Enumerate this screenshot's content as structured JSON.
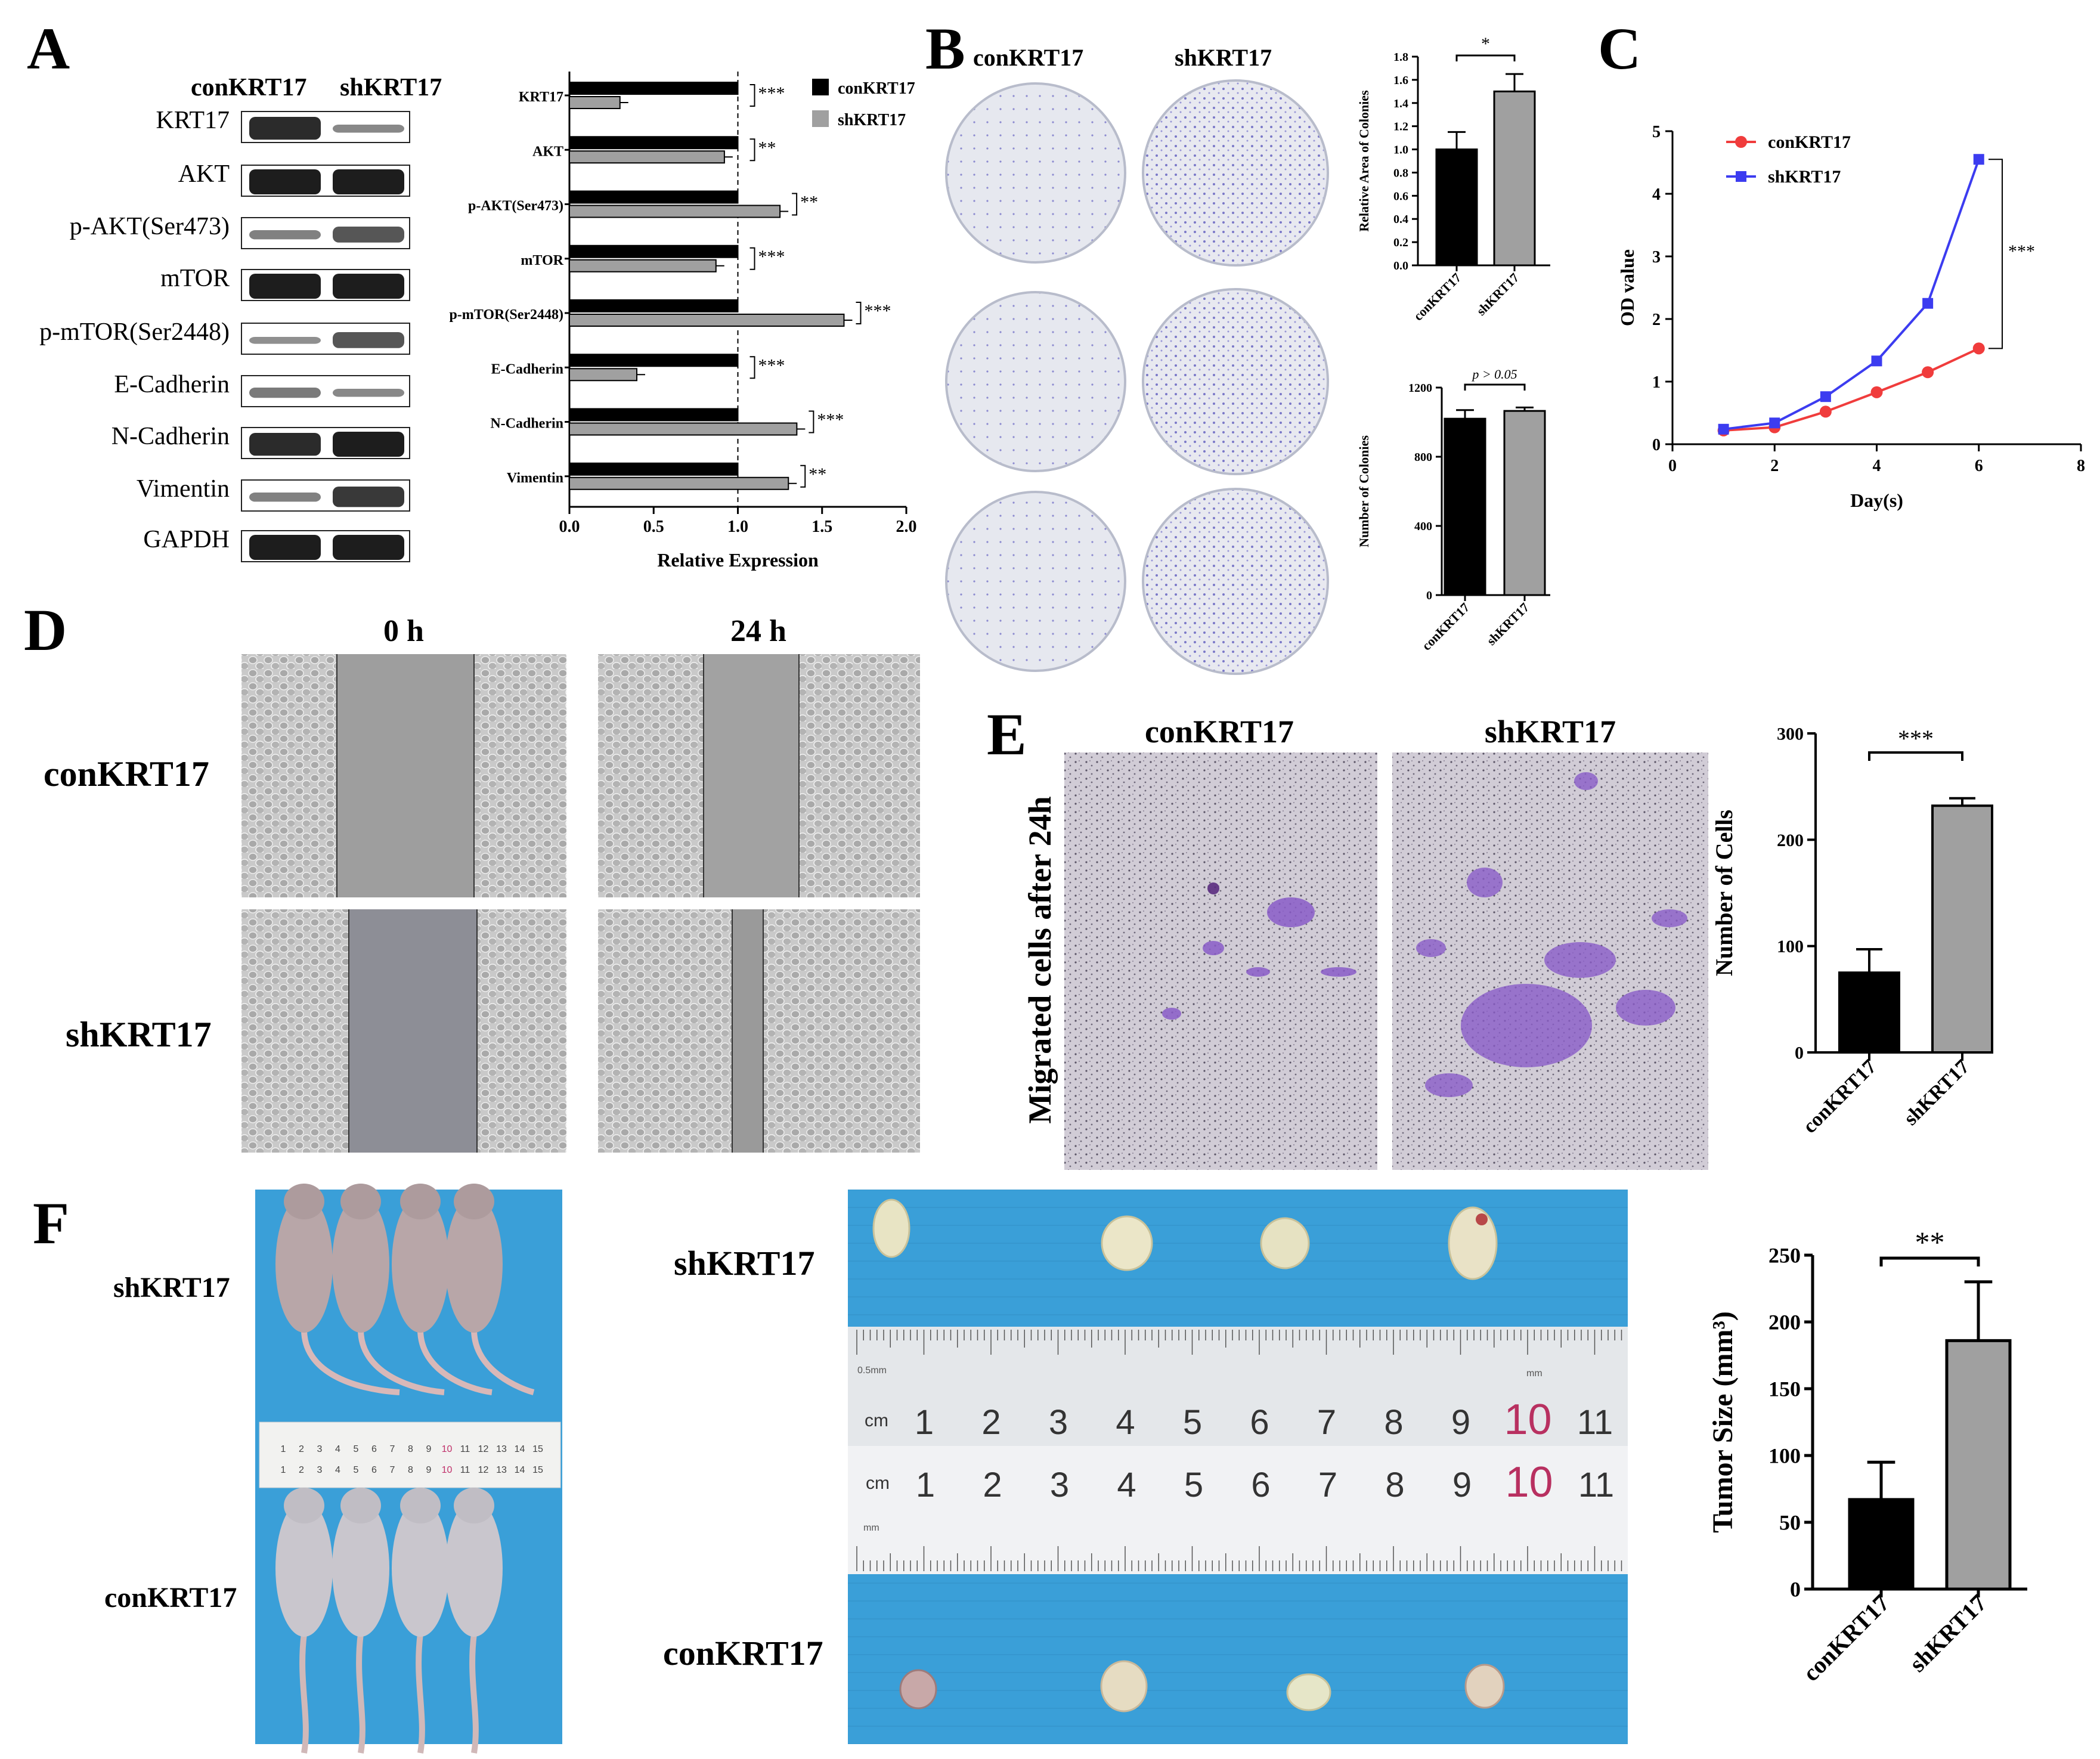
{
  "panels": {
    "A": {
      "letter": "A",
      "col_con": "conKRT17",
      "col_sh": "shKRT17",
      "blot_labels": [
        "KRT17",
        "AKT",
        "p-AKT(Ser473)",
        "mTOR",
        "p-mTOR(Ser2448)",
        "E-Cadherin",
        "N-Cadherin",
        "Vimentin",
        "GAPDH"
      ]
    },
    "B": {
      "letter": "B",
      "col_con": "conKRT17",
      "col_sh": "shKRT17"
    },
    "C": {
      "letter": "C"
    },
    "D": {
      "letter": "D",
      "time_0": "0 h",
      "time_24": "24 h",
      "row_con": "conKRT17",
      "row_sh": "shKRT17"
    },
    "E": {
      "letter": "E",
      "side_label": "Migrated cells after 24h",
      "col_con": "conKRT17",
      "col_sh": "shKRT17"
    },
    "F": {
      "letter": "F",
      "mice_sh": "shKRT17",
      "mice_con": "conKRT17",
      "tumor_sh": "shKRT17",
      "tumor_con": "conKRT17"
    }
  },
  "ruler": {
    "unit": "cm",
    "numbers": [
      "1",
      "2",
      "3",
      "4",
      "5",
      "6",
      "7",
      "8",
      "9",
      "10",
      "11"
    ],
    "small_numbers": [
      "1",
      "2",
      "3",
      "4",
      "5",
      "6",
      "7",
      "8",
      "9",
      "10",
      "11",
      "12",
      "13",
      "14",
      "15"
    ],
    "note_top": "0.5mm",
    "note_mm": "mm"
  },
  "colors": {
    "con": "#000000",
    "sh": "#a0a0a0",
    "con_line": "#f03c3c",
    "sh_line": "#3c3cf0",
    "drape": "#3a9fd8",
    "stain": "#8a5cc8"
  },
  "chart_data": [
    {
      "id": "A-bar",
      "type": "bar",
      "orientation": "horizontal",
      "categories": [
        "KRT17",
        "AKT",
        "p-AKT(Ser473)",
        "mTOR",
        "p-mTOR(Ser2448)",
        "E-Cadherin",
        "N-Cadherin",
        "Vimentin"
      ],
      "series": [
        {
          "name": "conKRT17",
          "values": [
            1.0,
            1.0,
            1.0,
            1.0,
            1.0,
            1.0,
            1.0,
            1.0
          ]
        },
        {
          "name": "shKRT17",
          "values": [
            0.3,
            0.92,
            1.25,
            0.87,
            1.63,
            0.4,
            1.35,
            1.3
          ]
        }
      ],
      "significance": [
        "***",
        "**",
        "**",
        "***",
        "***",
        "***",
        "***",
        "**"
      ],
      "xlabel": "Relative Expression",
      "xlim": [
        0,
        2.0
      ],
      "xticks": [
        "0.0",
        "0.5",
        "1.0",
        "1.5",
        "2.0"
      ],
      "reference_line": 1.0,
      "legend": "top-right"
    },
    {
      "id": "B-area",
      "type": "bar",
      "categories": [
        "conKRT17",
        "shKRT17"
      ],
      "values": [
        1.0,
        1.5
      ],
      "errors": [
        0.15,
        0.15
      ],
      "ylabel": "Relative Area of Colonies",
      "ylim": [
        0,
        1.8
      ],
      "yticks": [
        "0.0",
        "0.2",
        "0.4",
        "0.6",
        "0.8",
        "1.0",
        "1.2",
        "1.4",
        "1.6",
        "1.8"
      ],
      "significance": "*"
    },
    {
      "id": "B-number",
      "type": "bar",
      "categories": [
        "conKRT17",
        "shKRT17"
      ],
      "values": [
        1020,
        1065
      ],
      "errors": [
        50,
        20
      ],
      "ylabel": "Number of Colonies",
      "ylim": [
        0,
        1200
      ],
      "yticks": [
        "0",
        "400",
        "800",
        "1200"
      ],
      "significance": "p > 0.05"
    },
    {
      "id": "C-line",
      "type": "line",
      "series": [
        {
          "name": "conKRT17",
          "x": [
            1,
            2,
            3,
            4,
            5,
            6
          ],
          "values": [
            0.22,
            0.27,
            0.52,
            0.83,
            1.15,
            1.53
          ]
        },
        {
          "name": "shKRT17",
          "x": [
            1,
            2,
            3,
            4,
            5,
            6
          ],
          "values": [
            0.24,
            0.34,
            0.76,
            1.33,
            2.25,
            4.55
          ]
        }
      ],
      "xlabel": "Day(s)",
      "ylabel": "OD value",
      "xlim": [
        0,
        8
      ],
      "ylim": [
        0,
        5
      ],
      "xticks": [
        "0",
        "2",
        "4",
        "6",
        "8"
      ],
      "yticks": [
        "0",
        "1",
        "2",
        "3",
        "4",
        "5"
      ],
      "significance": "***",
      "legend": "top-left"
    },
    {
      "id": "E-bar",
      "type": "bar",
      "categories": [
        "conKRT17",
        "shKRT17"
      ],
      "values": [
        75,
        232
      ],
      "errors": [
        22,
        7
      ],
      "ylabel": "Number of Cells",
      "ylim": [
        0,
        300
      ],
      "yticks": [
        "0",
        "100",
        "200",
        "300"
      ],
      "significance": "***"
    },
    {
      "id": "F-bar",
      "type": "bar",
      "categories": [
        "conKRT17",
        "shKRT17"
      ],
      "values": [
        67,
        186
      ],
      "errors": [
        28,
        44
      ],
      "ylabel": "Tumor Size (mm³)",
      "ylim": [
        0,
        250
      ],
      "yticks": [
        "0",
        "50",
        "100",
        "150",
        "200",
        "250"
      ],
      "significance": "**"
    }
  ]
}
